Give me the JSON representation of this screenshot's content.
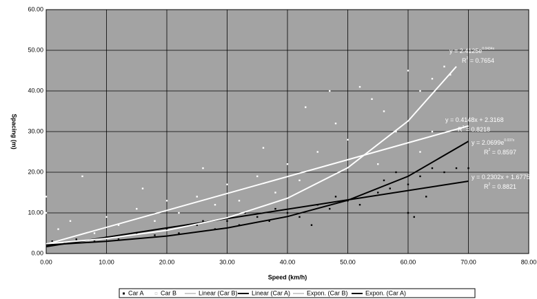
{
  "chart_data": {
    "type": "scatter",
    "x_label": "Speed (km/h)",
    "y_label": "Spacing (m)",
    "xlim": [
      0,
      80
    ],
    "ylim": [
      0,
      60
    ],
    "xticks": [
      {
        "value": 0,
        "label": "0.00"
      },
      {
        "value": 10,
        "label": "10.00"
      },
      {
        "value": 20,
        "label": "20.00"
      },
      {
        "value": 30,
        "label": "30.00"
      },
      {
        "value": 40,
        "label": "40.00"
      },
      {
        "value": 50,
        "label": "50.00"
      },
      {
        "value": 60,
        "label": "60.00"
      },
      {
        "value": 70,
        "label": "70.00"
      },
      {
        "value": 80,
        "label": "80.00"
      }
    ],
    "yticks": [
      {
        "value": 0,
        "label": "0.00"
      },
      {
        "value": 10,
        "label": "10.00"
      },
      {
        "value": 20,
        "label": "20.00"
      },
      {
        "value": 30,
        "label": "30.00"
      },
      {
        "value": 40,
        "label": "40.00"
      },
      {
        "value": 50,
        "label": "50.00"
      },
      {
        "value": 60,
        "label": "60.00"
      }
    ],
    "grid": true,
    "series": [
      {
        "name": "Car A",
        "kind": "scatter",
        "color": "#000000",
        "x": [
          1,
          3,
          5,
          8,
          10,
          12,
          15,
          18,
          20,
          22,
          25,
          28,
          30,
          32,
          35,
          37,
          40,
          42,
          45,
          47,
          50,
          52,
          55,
          57,
          58,
          60,
          62,
          64,
          66,
          68,
          70,
          60,
          61,
          63,
          56,
          48,
          38,
          33,
          26,
          44
        ],
        "values": [
          3,
          2.5,
          3.5,
          3,
          4,
          3.5,
          5,
          4.5,
          6,
          5,
          7,
          6,
          8,
          7,
          9,
          8,
          10,
          9,
          12,
          11,
          13,
          12,
          15,
          16,
          20,
          17,
          19,
          21,
          20,
          21,
          21,
          10,
          9,
          14,
          18,
          14,
          11,
          10,
          8,
          7
        ]
      },
      {
        "name": "Car B",
        "kind": "scatter",
        "color": "#ffffff",
        "x": [
          0,
          0,
          2,
          4,
          6,
          8,
          10,
          12,
          15,
          18,
          20,
          22,
          25,
          28,
          30,
          32,
          35,
          38,
          40,
          42,
          45,
          47,
          48,
          50,
          52,
          54,
          56,
          58,
          60,
          62,
          64,
          66,
          67,
          62,
          64,
          55,
          43,
          36,
          26,
          16
        ],
        "values": [
          10,
          14,
          6,
          8,
          19,
          5,
          9,
          7,
          11,
          8,
          13,
          10,
          14,
          12,
          17,
          13,
          19,
          15,
          22,
          18,
          25,
          40,
          32,
          28,
          41,
          38,
          35,
          30,
          45,
          40,
          43,
          46,
          44,
          25,
          30,
          22,
          36,
          26,
          21,
          16
        ]
      },
      {
        "name": "Linear (Car B)",
        "kind": "line",
        "color": "#ffffff",
        "x": [
          0,
          70
        ],
        "values": [
          2.3,
          31.4
        ]
      },
      {
        "name": "Linear (Car A)",
        "kind": "line",
        "color": "#000000",
        "x": [
          0,
          70
        ],
        "values": [
          1.7,
          17.8
        ]
      },
      {
        "name": "Expon. (Car B)",
        "kind": "line",
        "color": "#ffffff",
        "x": [
          0,
          10,
          20,
          30,
          40,
          50,
          60,
          68
        ],
        "values": [
          2.4,
          3.7,
          5.7,
          8.8,
          13.6,
          21.1,
          32.6,
          46
        ]
      },
      {
        "name": "Expon. (Car A)",
        "kind": "line",
        "color": "#000000",
        "x": [
          0,
          10,
          20,
          30,
          40,
          50,
          60,
          70
        ],
        "values": [
          2.1,
          3,
          4.3,
          6.3,
          9.1,
          13.1,
          19,
          27.6
        ]
      }
    ],
    "annotations": [
      [
        [
          {
            "t": "y = 2.4125e"
          },
          {
            "t": "0.0434x",
            "sup": true
          }
        ],
        [
          {
            "t": "R"
          },
          {
            "t": "2",
            "sup": true
          },
          {
            "t": " = 0.7654"
          }
        ]
      ],
      [
        [
          {
            "t": "y = 0.4148x + 2.3168"
          }
        ],
        [
          {
            "t": "R"
          },
          {
            "t": "2",
            "sup": true
          },
          {
            "t": " = 0.8218"
          }
        ]
      ],
      [
        [
          {
            "t": "y = 2.0699e"
          },
          {
            "t": "0.037x",
            "sup": true
          }
        ],
        [
          {
            "t": "R"
          },
          {
            "t": "2",
            "sup": true
          },
          {
            "t": " = 0.8597"
          }
        ]
      ],
      [
        [
          {
            "t": "y = 0.2302x + 1.6775"
          }
        ],
        [
          {
            "t": "R"
          },
          {
            "t": "2",
            "sup": true
          },
          {
            "t": " = 0.8821"
          }
        ]
      ]
    ]
  }
}
